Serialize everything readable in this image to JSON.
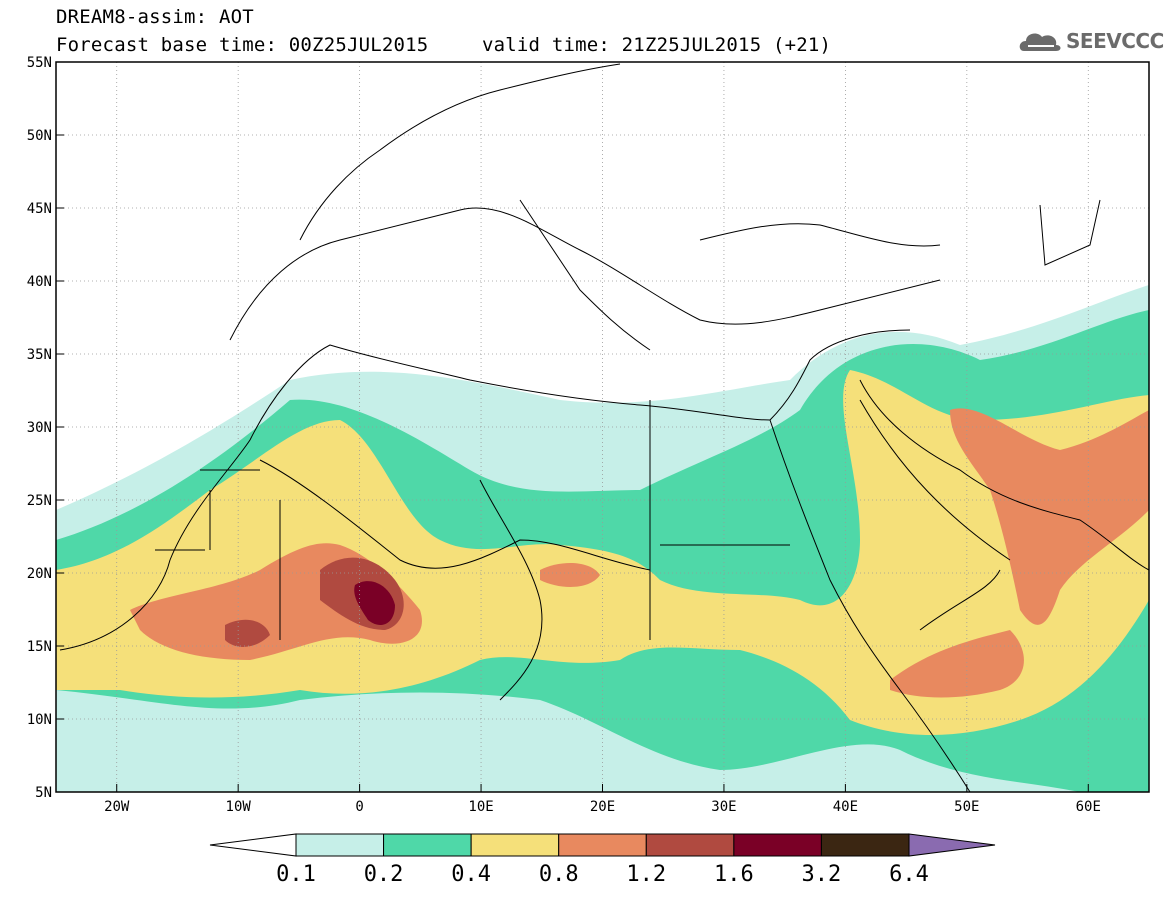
{
  "header": {
    "title_line1": "DREAM8-assim: AOT",
    "title_line2": "Forecast base time: 00Z25JUL2015",
    "valid_time": "valid time: 21Z25JUL2015 (+21)",
    "logo_text": "SEEVCCC"
  },
  "map": {
    "projection": "lat-lon",
    "lon_range": [
      -25,
      65
    ],
    "lat_range": [
      5,
      55
    ],
    "lon_ticks": [
      "20W",
      "10W",
      "0",
      "10E",
      "20E",
      "30E",
      "40E",
      "50E",
      "60E"
    ],
    "lat_ticks": [
      "5N",
      "10N",
      "15N",
      "20N",
      "25N",
      "30N",
      "35N",
      "40N",
      "45N",
      "50N",
      "55N"
    ],
    "field": "aerosol optical thickness (dust)"
  },
  "colorbar": {
    "levels": [
      "0.1",
      "0.2",
      "0.4",
      "0.8",
      "1.2",
      "1.6",
      "3.2",
      "6.4"
    ],
    "colors": [
      "#ffffff",
      "#c6efe8",
      "#4fd8a8",
      "#f5e07a",
      "#e8895f",
      "#b04a40",
      "#7a0026",
      "#3b2612",
      "#8a6bb0"
    ]
  }
}
